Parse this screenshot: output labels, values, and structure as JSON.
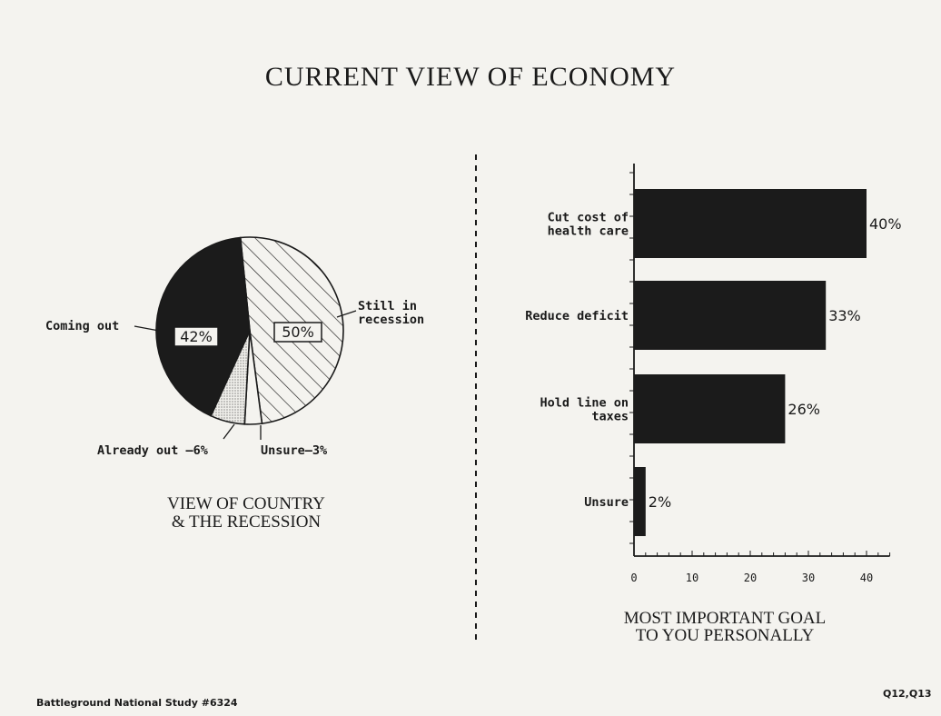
{
  "page": {
    "title": "CURRENT VIEW OF ECONOMY",
    "footer_left": "Battleground National Study #6324",
    "footer_right": "Q12,Q13"
  },
  "chart_data": [
    {
      "type": "pie",
      "title": "VIEW OF COUNTRY & THE RECESSION",
      "title_lines": [
        "VIEW OF COUNTRY",
        "& THE RECESSION"
      ],
      "slices": [
        {
          "label": "Still in recession",
          "label_lines": [
            "Still in",
            "recession"
          ],
          "value": 50,
          "value_label": "50%",
          "fill": "hatch"
        },
        {
          "label": "Unsure",
          "value": 3,
          "value_label": "Unsure–3%",
          "fill": "white"
        },
        {
          "label": "Already out",
          "value": 6,
          "value_label": "Already out –6%",
          "fill": "dots"
        },
        {
          "label": "Coming out",
          "value": 42,
          "value_label": "42%",
          "fill": "black"
        }
      ]
    },
    {
      "type": "bar",
      "orientation": "horizontal",
      "title": "MOST IMPORTANT GOAL TO YOU PERSONALLY",
      "title_lines": [
        "MOST IMPORTANT GOAL",
        "TO YOU PERSONALLY"
      ],
      "categories": [
        {
          "label_lines": [
            "Cut cost of",
            "health care"
          ],
          "value": 40,
          "value_label": "40%"
        },
        {
          "label_lines": [
            "Reduce deficit"
          ],
          "value": 33,
          "value_label": "33%"
        },
        {
          "label_lines": [
            "Hold line on",
            "taxes"
          ],
          "value": 26,
          "value_label": "26%"
        },
        {
          "label_lines": [
            "Unsure"
          ],
          "value": 2,
          "value_label": "2%"
        }
      ],
      "xlim": [
        0,
        44
      ],
      "ticks": [
        0,
        10,
        20,
        30,
        40
      ],
      "bar_color": "#1b1b1b"
    }
  ]
}
